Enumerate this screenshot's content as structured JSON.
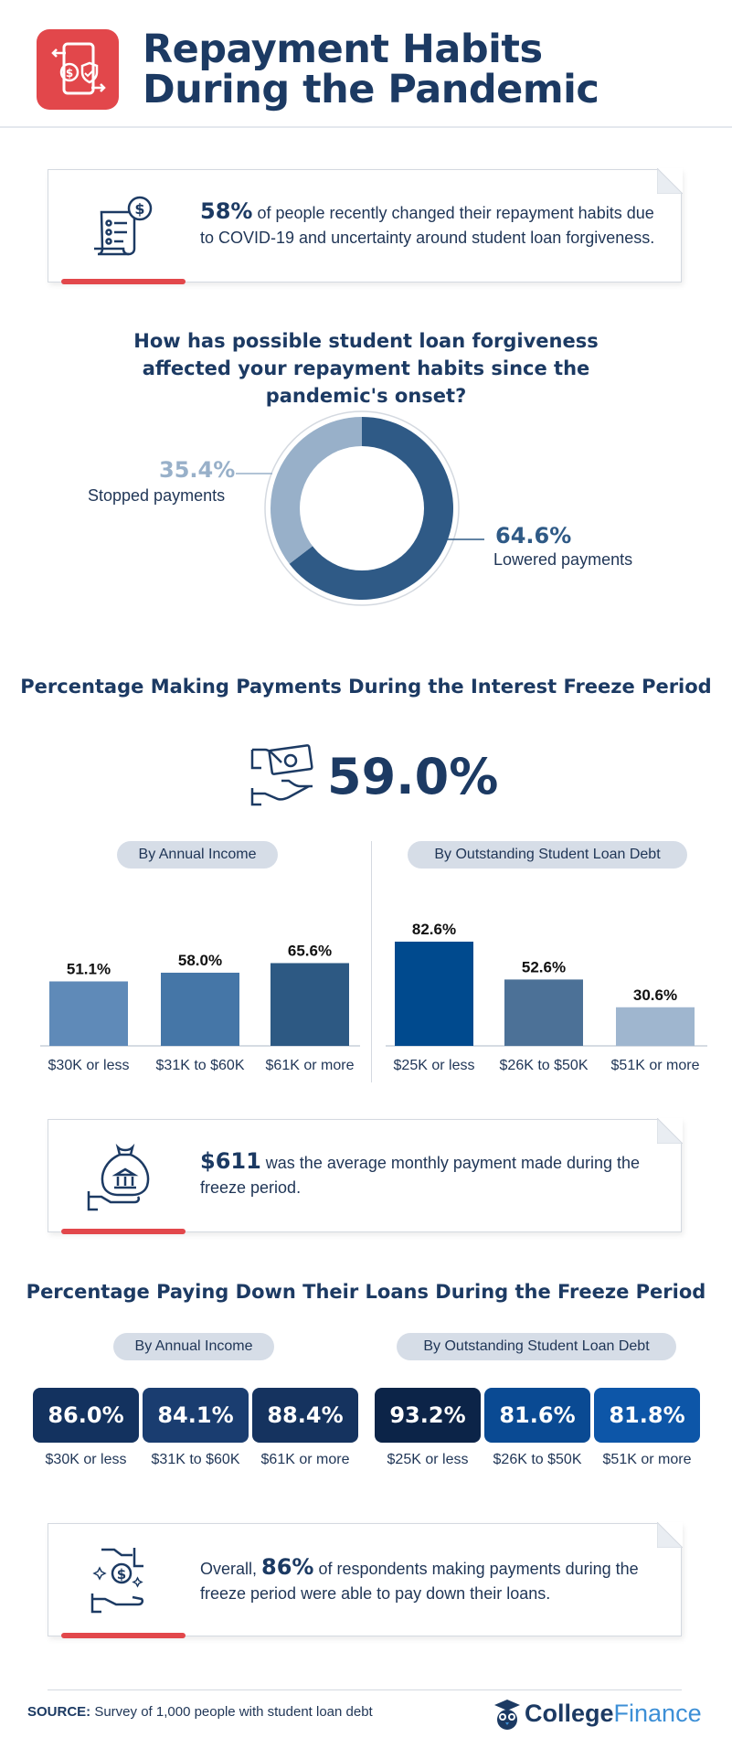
{
  "header": {
    "title": "Repayment Habits During the Pandemic",
    "icon": "phone-money-shield-icon",
    "accent_color": "#e2474b"
  },
  "card1": {
    "highlight": "58%",
    "text": " of people recently changed their repayment habits due to COVID-19 and uncertainty around student loan forgiveness.",
    "icon": "invoice-dollar-icon"
  },
  "donut": {
    "title": "How has possible student loan forgiveness affected your repayment habits since the pandemic's onset?",
    "stopped_pct": "35.4%",
    "stopped_label": "Stopped payments",
    "lowered_pct": "64.6%",
    "lowered_label": "Lowered payments"
  },
  "freeze": {
    "title": "Percentage Making Payments During the Interest Freeze Period",
    "overall": "59.0%",
    "icon": "hand-cash-icon",
    "income_pill": "By Annual Income",
    "debt_pill": "By Outstanding Student Loan Debt"
  },
  "card2": {
    "highlight": "$611",
    "text": " was the average monthly payment made during the freeze period.",
    "icon": "money-bag-hand-icon"
  },
  "paydown": {
    "title": "Percentage Paying Down Their Loans During the Freeze Period",
    "income_pill": "By Annual Income",
    "debt_pill": "By Outstanding Student Loan Debt"
  },
  "card3": {
    "prefix": "Overall, ",
    "highlight": "86%",
    "text": " of respondents making payments during the freeze period were able to pay down their loans.",
    "icon": "hand-dollar-coin-icon"
  },
  "footer": {
    "source_label": "SOURCE:",
    "source_text": " Survey of 1,000 people with student loan debt",
    "brand_bold": "College",
    "brand_light": "Finance",
    "brand_icon": "owl-graduate-icon"
  },
  "chart_data": [
    {
      "type": "pie",
      "title": "How has possible student loan forgiveness affected your repayment habits since the pandemic's onset?",
      "donut": true,
      "categories": [
        "Stopped payments",
        "Lowered payments"
      ],
      "values": [
        35.4,
        64.6
      ],
      "colors": [
        "#98b0c9",
        "#2f5a86"
      ]
    },
    {
      "type": "bar",
      "title": "Percentage Making Payments During the Interest Freeze Period",
      "subtitle": "By Annual Income",
      "categories": [
        "$30K or less",
        "$31K to $60K",
        "$61K or more"
      ],
      "values": [
        51.1,
        58.0,
        65.6
      ],
      "labels": [
        "51.1%",
        "58.0%",
        "65.6%"
      ],
      "colors": [
        "#5f8ab8",
        "#4576a7",
        "#2d5983"
      ],
      "ylim": [
        0,
        100
      ]
    },
    {
      "type": "bar",
      "title": "Percentage Making Payments During the Interest Freeze Period",
      "subtitle": "By Outstanding Student Loan Debt",
      "categories": [
        "$25K or less",
        "$26K to $50K",
        "$51K or more"
      ],
      "values": [
        82.6,
        52.6,
        30.6
      ],
      "labels": [
        "82.6%",
        "52.6%",
        "30.6%"
      ],
      "colors": [
        "#004a8e",
        "#4c7197",
        "#9fb6cf"
      ],
      "ylim": [
        0,
        100
      ]
    },
    {
      "type": "table",
      "title": "Percentage Paying Down Their Loans During the Freeze Period",
      "subtitle": "By Annual Income",
      "categories": [
        "$30K or less",
        "$31K to $60K",
        "$61K or more"
      ],
      "values": [
        86.0,
        84.1,
        88.4
      ],
      "labels": [
        "86.0%",
        "84.1%",
        "88.4%"
      ],
      "colors": [
        "#13325f",
        "#1a3d70",
        "#15335f"
      ]
    },
    {
      "type": "table",
      "title": "Percentage Paying Down Their Loans During the Freeze Period",
      "subtitle": "By Outstanding Student Loan Debt",
      "categories": [
        "$25K or less",
        "$26K to $50K",
        "$51K or more"
      ],
      "values": [
        93.2,
        81.6,
        81.8
      ],
      "labels": [
        "93.2%",
        "81.6%",
        "81.8%"
      ],
      "colors": [
        "#0c2448",
        "#0a4a93",
        "#0d56a8"
      ]
    }
  ]
}
